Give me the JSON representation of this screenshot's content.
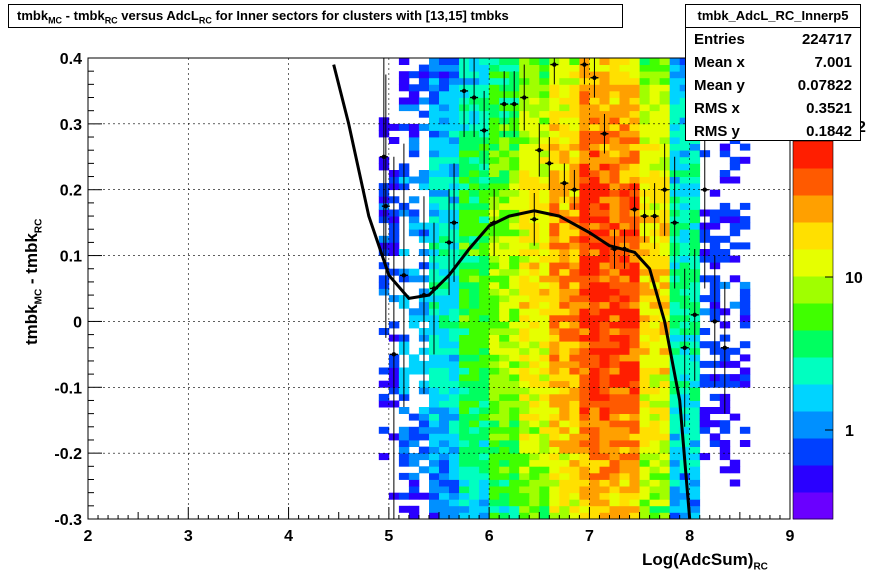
{
  "title": {
    "parts": [
      "tmbk",
      "MC",
      " - tmbk",
      "RC",
      " versus AdcL",
      "RC",
      " for Inner sectors for clusters with [13,15] tmbks"
    ]
  },
  "stats": {
    "name": "tmbk_AdcL_RC_Innerp5",
    "rows": [
      {
        "label": "Entries",
        "value": "224717"
      },
      {
        "label": "Mean x",
        "value": "7.001"
      },
      {
        "label": "Mean y",
        "value": "0.07822"
      },
      {
        "label": "RMS x",
        "value": "0.3521"
      },
      {
        "label": "RMS y",
        "value": "0.1842"
      }
    ]
  },
  "colorbar_visible": {
    "exponent_fragment": "2"
  },
  "chart_data": {
    "type": "heatmap",
    "title": "tmbk_MC - tmbk_RC versus AdcL_RC for Inner sectors for clusters with [13,15] tmbks",
    "xlabel": "Log(AdcSum)_RC",
    "ylabel": "tmbk_MC - tmbk_RC",
    "xlim": [
      2,
      9
    ],
    "ylim": [
      -0.3,
      0.4
    ],
    "xticks": [
      "2",
      "3",
      "4",
      "5",
      "6",
      "7",
      "8",
      "9"
    ],
    "yticks": [
      "-0.3",
      "-0.2",
      "-0.1",
      "0",
      "0.1",
      "0.2",
      "0.3",
      "0.4"
    ],
    "z_scale": "log",
    "colorbar_ticks": [
      "1",
      "10",
      "10^2"
    ],
    "grid": true,
    "heatmap_column_peak": [
      {
        "x": 4.95,
        "z": 1
      },
      {
        "x": 5.25,
        "z": 2
      },
      {
        "x": 5.55,
        "z": 4
      },
      {
        "x": 5.85,
        "z": 9
      },
      {
        "x": 6.15,
        "z": 18
      },
      {
        "x": 6.45,
        "z": 35
      },
      {
        "x": 6.75,
        "z": 70
      },
      {
        "x": 7.05,
        "z": 140
      },
      {
        "x": 7.35,
        "z": 120
      },
      {
        "x": 7.65,
        "z": 40
      },
      {
        "x": 7.95,
        "z": 5
      },
      {
        "x": 8.25,
        "z": 1
      }
    ],
    "profile_points": [
      {
        "x": 4.95,
        "y": 0.25,
        "err": 0.15
      },
      {
        "x": 4.97,
        "y": 0.175,
        "err": 0.2
      },
      {
        "x": 5.05,
        "y": -0.05,
        "err": 0.3
      },
      {
        "x": 5.15,
        "y": 0.07,
        "err": 0.2
      },
      {
        "x": 5.35,
        "y": 0.04,
        "err": 0.15
      },
      {
        "x": 5.45,
        "y": 0.05,
        "err": 0.1
      },
      {
        "x": 5.6,
        "y": 0.12,
        "err": 0.08
      },
      {
        "x": 5.65,
        "y": 0.15,
        "err": 0.09
      },
      {
        "x": 5.75,
        "y": 0.35,
        "err": 0.07
      },
      {
        "x": 5.85,
        "y": 0.34,
        "err": 0.06
      },
      {
        "x": 5.95,
        "y": 0.29,
        "err": 0.06
      },
      {
        "x": 6.05,
        "y": 0.15,
        "err": 0.05
      },
      {
        "x": 6.15,
        "y": 0.33,
        "err": 0.05
      },
      {
        "x": 6.25,
        "y": 0.33,
        "err": 0.05
      },
      {
        "x": 6.35,
        "y": 0.34,
        "err": 0.05
      },
      {
        "x": 6.45,
        "y": 0.155,
        "err": 0.04
      },
      {
        "x": 6.5,
        "y": 0.26,
        "err": 0.04
      },
      {
        "x": 6.6,
        "y": 0.24,
        "err": 0.04
      },
      {
        "x": 6.65,
        "y": 0.39,
        "err": 0.03
      },
      {
        "x": 6.75,
        "y": 0.21,
        "err": 0.03
      },
      {
        "x": 6.85,
        "y": 0.2,
        "err": 0.03
      },
      {
        "x": 6.95,
        "y": 0.39,
        "err": 0.03
      },
      {
        "x": 7.05,
        "y": 0.37,
        "err": 0.03
      },
      {
        "x": 7.15,
        "y": 0.285,
        "err": 0.03
      },
      {
        "x": 7.25,
        "y": 0.11,
        "err": 0.03
      },
      {
        "x": 7.35,
        "y": 0.11,
        "err": 0.03
      },
      {
        "x": 7.45,
        "y": 0.17,
        "err": 0.04
      },
      {
        "x": 7.55,
        "y": 0.16,
        "err": 0.04
      },
      {
        "x": 7.65,
        "y": 0.16,
        "err": 0.05
      },
      {
        "x": 7.75,
        "y": 0.2,
        "err": 0.07
      },
      {
        "x": 7.85,
        "y": 0.15,
        "err": 0.1
      },
      {
        "x": 7.95,
        "y": -0.04,
        "err": 0.12
      },
      {
        "x": 8.05,
        "y": 0.01,
        "err": 0.1
      },
      {
        "x": 8.15,
        "y": 0.2,
        "err": 0.15
      },
      {
        "x": 8.25,
        "y": 0.0,
        "err": 0.1
      },
      {
        "x": 8.35,
        "y": -0.04,
        "err": 0.1
      }
    ],
    "fit_curve": [
      {
        "x": 4.45,
        "y": 0.39
      },
      {
        "x": 4.6,
        "y": 0.3
      },
      {
        "x": 4.8,
        "y": 0.16
      },
      {
        "x": 5.0,
        "y": 0.07
      },
      {
        "x": 5.2,
        "y": 0.035
      },
      {
        "x": 5.4,
        "y": 0.04
      },
      {
        "x": 5.6,
        "y": 0.07
      },
      {
        "x": 5.8,
        "y": 0.11
      },
      {
        "x": 6.0,
        "y": 0.145
      },
      {
        "x": 6.2,
        "y": 0.16
      },
      {
        "x": 6.45,
        "y": 0.168
      },
      {
        "x": 6.7,
        "y": 0.16
      },
      {
        "x": 7.0,
        "y": 0.135
      },
      {
        "x": 7.2,
        "y": 0.115
      },
      {
        "x": 7.45,
        "y": 0.105
      },
      {
        "x": 7.6,
        "y": 0.08
      },
      {
        "x": 7.75,
        "y": 0.0
      },
      {
        "x": 7.9,
        "y": -0.12
      },
      {
        "x": 8.0,
        "y": -0.3
      }
    ]
  }
}
